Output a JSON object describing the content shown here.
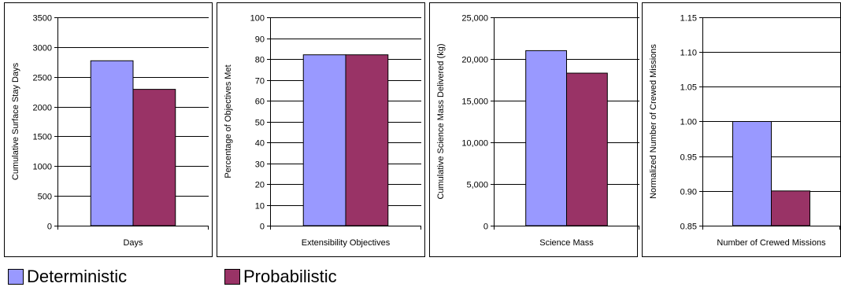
{
  "colors": {
    "deterministic": "#9999ff",
    "probabilistic": "#993366"
  },
  "legend": {
    "items": [
      {
        "label": "Deterministic",
        "color": "#9999ff"
      },
      {
        "label": "Probabilistic",
        "color": "#993366"
      }
    ]
  },
  "chart_data": [
    {
      "type": "bar",
      "categories": [
        "Days"
      ],
      "series": [
        {
          "name": "Deterministic",
          "values": [
            2770
          ]
        },
        {
          "name": "Probabilistic",
          "values": [
            2290
          ]
        }
      ],
      "xlabel": "Days",
      "ylabel": "Cumulative Surface Stay Days",
      "ylim": [
        0,
        3500
      ],
      "yticks": [
        0,
        500,
        1000,
        1500,
        2000,
        2500,
        3000,
        3500
      ],
      "yticklabels": [
        "0",
        "500",
        "1000",
        "1500",
        "2000",
        "2500",
        "3000",
        "3500"
      ],
      "grid": true
    },
    {
      "type": "bar",
      "categories": [
        "Extensibility Objectives"
      ],
      "series": [
        {
          "name": "Deterministic",
          "values": [
            82
          ]
        },
        {
          "name": "Probabilistic",
          "values": [
            82
          ]
        }
      ],
      "xlabel": "Extensibility Objectives",
      "ylabel": "Percentage of Objectives Met",
      "ylim": [
        0,
        100
      ],
      "yticks": [
        0,
        10,
        20,
        30,
        40,
        50,
        60,
        70,
        80,
        90,
        100
      ],
      "yticklabels": [
        "0",
        "10",
        "20",
        "30",
        "40",
        "50",
        "60",
        "70",
        "80",
        "90",
        "100"
      ],
      "grid": true
    },
    {
      "type": "bar",
      "categories": [
        "Science Mass"
      ],
      "series": [
        {
          "name": "Deterministic",
          "values": [
            21000
          ]
        },
        {
          "name": "Probabilistic",
          "values": [
            18300
          ]
        }
      ],
      "xlabel": "Science Mass",
      "ylabel": "Cumulative Science Mass Delivered (kg)",
      "ylim": [
        0,
        25000
      ],
      "yticks": [
        0,
        5000,
        10000,
        15000,
        20000,
        25000
      ],
      "yticklabels": [
        "0",
        "5,000",
        "10,000",
        "15,000",
        "20,000",
        "25,000"
      ],
      "grid": true
    },
    {
      "type": "bar",
      "categories": [
        "Number of Crewed Missions"
      ],
      "series": [
        {
          "name": "Deterministic",
          "values": [
            1.0
          ]
        },
        {
          "name": "Probabilistic",
          "values": [
            0.9
          ]
        }
      ],
      "xlabel": "Number of Crewed Missions",
      "ylabel": "Normalized Number of Crewed Missions",
      "ylim": [
        0.85,
        1.15
      ],
      "yticks": [
        0.85,
        0.9,
        0.95,
        1.0,
        1.05,
        1.1,
        1.15
      ],
      "yticklabels": [
        "0.85",
        "0.90",
        "0.95",
        "1.00",
        "1.05",
        "1.10",
        "1.15"
      ],
      "grid": true
    }
  ]
}
